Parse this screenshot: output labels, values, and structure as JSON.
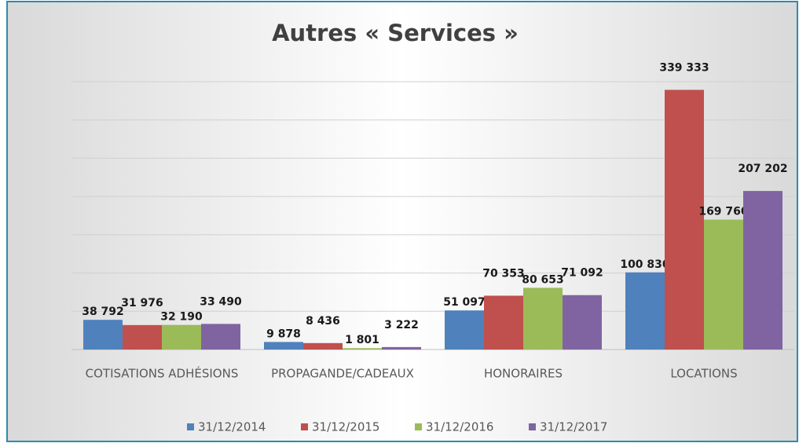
{
  "chart_data": {
    "type": "bar",
    "title": "Autres « Services »",
    "categories": [
      "COTISATIONS ADHÉSIONS",
      "PROPAGANDE/CADEAUX",
      "HONORAIRES",
      "LOCATIONS"
    ],
    "series": [
      {
        "name": "31/12/2014",
        "color": "#4f81bd",
        "values": [
          38792,
          9878,
          51097,
          100830
        ],
        "value_labels": [
          "38 792",
          "9 878",
          "51 097",
          "100 830"
        ]
      },
      {
        "name": "31/12/2015",
        "color": "#c0504d",
        "values": [
          31976,
          8436,
          70353,
          339333
        ],
        "value_labels": [
          "31 976",
          "8 436",
          "70 353",
          "339 333"
        ]
      },
      {
        "name": "31/12/2016",
        "color": "#9bbb59",
        "values": [
          32190,
          1801,
          80653,
          169760
        ],
        "value_labels": [
          "32 190",
          "1 801",
          "80 653",
          "169 760"
        ]
      },
      {
        "name": "31/12/2017",
        "color": "#8064a2",
        "values": [
          33490,
          3222,
          71092,
          207202
        ],
        "value_labels": [
          "33 490",
          "3 222",
          "71 092",
          "207 202"
        ]
      }
    ],
    "ylim": [
      0,
      350000
    ],
    "yticks": [
      0,
      50000,
      100000,
      150000,
      200000,
      250000,
      300000,
      350000
    ],
    "grid": true,
    "legend": "bottom"
  }
}
